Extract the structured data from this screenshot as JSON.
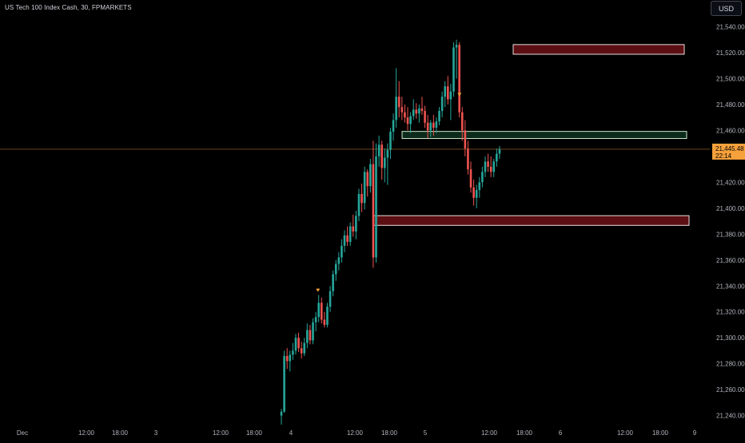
{
  "header": {
    "symbol_title": "US Tech 100 Index Cash, 30, FPMARKETS",
    "currency_label": "USD"
  },
  "price_axis": {
    "ticks": [
      "21,540.00",
      "21,520.00",
      "21,500.00",
      "21,480.00",
      "21,460.00",
      "21,440.00",
      "21,420.00",
      "21,400.00",
      "21,380.00",
      "21,360.00",
      "21,340.00",
      "21,320.00",
      "21,300.00",
      "21,280.00",
      "21,260.00",
      "21,240.00"
    ],
    "current_price_label": "21,445.48",
    "countdown_label": "22:14"
  },
  "time_axis": {
    "ticks": [
      "Dec",
      "12:00",
      "18:00",
      "3",
      "12:00",
      "18:00",
      "4",
      "12:00",
      "18:00",
      "5",
      "12:00",
      "18:00",
      "6",
      "12:00",
      "18:00",
      "9"
    ]
  },
  "colors": {
    "background": "#000000",
    "up_candle": "#26a69a",
    "down_candle": "#ef5350",
    "price_line": "#f7a13c",
    "zone_red_fill": "#5c0f12",
    "zone_border": "#e8dcdc",
    "zone_green_fill": "#0d2b1c",
    "marker": "#f7a13c"
  },
  "chart_data": {
    "type": "candlestick",
    "current_price": 21445.48,
    "ylim": [
      21233,
      21552
    ],
    "zones": [
      {
        "kind": "supply",
        "color": "red",
        "from_time": "5 16:00",
        "to_time": "9 00:00",
        "low": 21520,
        "high": 21525
      },
      {
        "kind": "level",
        "color": "green",
        "from_time": "5 00:00",
        "to_time": "9 00:00",
        "low": 21455,
        "high": 21458
      },
      {
        "kind": "demand",
        "color": "red",
        "from_time": "4 15:30",
        "to_time": "9 00:00",
        "low": 21388,
        "high": 21393
      }
    ],
    "markers": [
      {
        "time": "4 06:30",
        "price": 21333,
        "symbol": "triangle-down"
      },
      {
        "time": "5 07:30",
        "price": 21484,
        "symbol": "triangle-down"
      }
    ],
    "candles_ohlc_note": "open/high/low/close per 30m bar, from 4 00:00 to 6 10:00",
    "candles": [
      [
        21240,
        21245,
        21233,
        21243
      ],
      [
        21243,
        21290,
        21242,
        21286
      ],
      [
        21286,
        21292,
        21276,
        21282
      ],
      [
        21282,
        21290,
        21274,
        21287
      ],
      [
        21287,
        21296,
        21283,
        21290
      ],
      [
        21290,
        21303,
        21287,
        21300
      ],
      [
        21300,
        21304,
        21289,
        21292
      ],
      [
        21292,
        21297,
        21284,
        21288
      ],
      [
        21288,
        21300,
        21286,
        21296
      ],
      [
        21296,
        21311,
        21292,
        21306
      ],
      [
        21306,
        21310,
        21295,
        21298
      ],
      [
        21298,
        21315,
        21295,
        21312
      ],
      [
        21312,
        21320,
        21305,
        21316
      ],
      [
        21316,
        21333,
        21312,
        21327
      ],
      [
        21327,
        21331,
        21311,
        21314
      ],
      [
        21314,
        21320,
        21308,
        21310
      ],
      [
        21310,
        21327,
        21308,
        21324
      ],
      [
        21324,
        21340,
        21320,
        21336
      ],
      [
        21336,
        21352,
        21332,
        21349
      ],
      [
        21349,
        21360,
        21344,
        21357
      ],
      [
        21357,
        21366,
        21352,
        21362
      ],
      [
        21362,
        21376,
        21358,
        21371
      ],
      [
        21371,
        21383,
        21366,
        21379
      ],
      [
        21379,
        21386,
        21371,
        21374
      ],
      [
        21374,
        21389,
        21371,
        21386
      ],
      [
        21386,
        21395,
        21378,
        21382
      ],
      [
        21382,
        21398,
        21376,
        21394
      ],
      [
        21394,
        21415,
        21390,
        21411
      ],
      [
        21411,
        21419,
        21397,
        21404
      ],
      [
        21404,
        21432,
        21399,
        21428
      ],
      [
        21428,
        21430,
        21409,
        21417
      ],
      [
        21417,
        21438,
        21412,
        21434
      ],
      [
        21434,
        21452,
        21354,
        21362
      ],
      [
        21362,
        21450,
        21358,
        21440
      ],
      [
        21440,
        21456,
        21432,
        21449
      ],
      [
        21449,
        21452,
        21422,
        21431
      ],
      [
        21431,
        21446,
        21420,
        21439
      ],
      [
        21439,
        21450,
        21418,
        21445
      ],
      [
        21445,
        21462,
        21438,
        21459
      ],
      [
        21459,
        21473,
        21452,
        21468
      ],
      [
        21468,
        21508,
        21462,
        21486
      ],
      [
        21486,
        21498,
        21470,
        21478
      ],
      [
        21478,
        21486,
        21468,
        21474
      ],
      [
        21474,
        21480,
        21466,
        21470
      ],
      [
        21470,
        21478,
        21460,
        21465
      ],
      [
        21465,
        21474,
        21458,
        21471
      ],
      [
        21471,
        21484,
        21468,
        21476
      ],
      [
        21476,
        21481,
        21469,
        21473
      ],
      [
        21473,
        21480,
        21466,
        21477
      ],
      [
        21477,
        21486,
        21472,
        21475
      ],
      [
        21475,
        21479,
        21462,
        21466
      ],
      [
        21466,
        21472,
        21454,
        21460
      ],
      [
        21460,
        21468,
        21455,
        21466
      ],
      [
        21466,
        21472,
        21456,
        21462
      ],
      [
        21462,
        21470,
        21458,
        21467
      ],
      [
        21467,
        21478,
        21464,
        21475
      ],
      [
        21475,
        21490,
        21470,
        21486
      ],
      [
        21486,
        21498,
        21478,
        21494
      ],
      [
        21494,
        21502,
        21480,
        21484
      ],
      [
        21484,
        21496,
        21468,
        21490
      ],
      [
        21490,
        21528,
        21486,
        21524
      ],
      [
        21524,
        21530,
        21500,
        21526
      ],
      [
        21526,
        21528,
        21470,
        21474
      ],
      [
        21474,
        21478,
        21452,
        21460
      ],
      [
        21460,
        21468,
        21440,
        21446
      ],
      [
        21446,
        21452,
        21426,
        21430
      ],
      [
        21430,
        21436,
        21412,
        21416
      ],
      [
        21416,
        21422,
        21402,
        21408
      ],
      [
        21408,
        21418,
        21400,
        21414
      ],
      [
        21414,
        21424,
        21408,
        21420
      ],
      [
        21420,
        21432,
        21416,
        21428
      ],
      [
        21428,
        21440,
        21424,
        21436
      ],
      [
        21436,
        21442,
        21428,
        21432
      ],
      [
        21432,
        21440,
        21424,
        21428
      ],
      [
        21428,
        21438,
        21424,
        21436
      ],
      [
        21436,
        21446,
        21432,
        21442
      ],
      [
        21442,
        21448,
        21438,
        21445.48
      ]
    ]
  }
}
